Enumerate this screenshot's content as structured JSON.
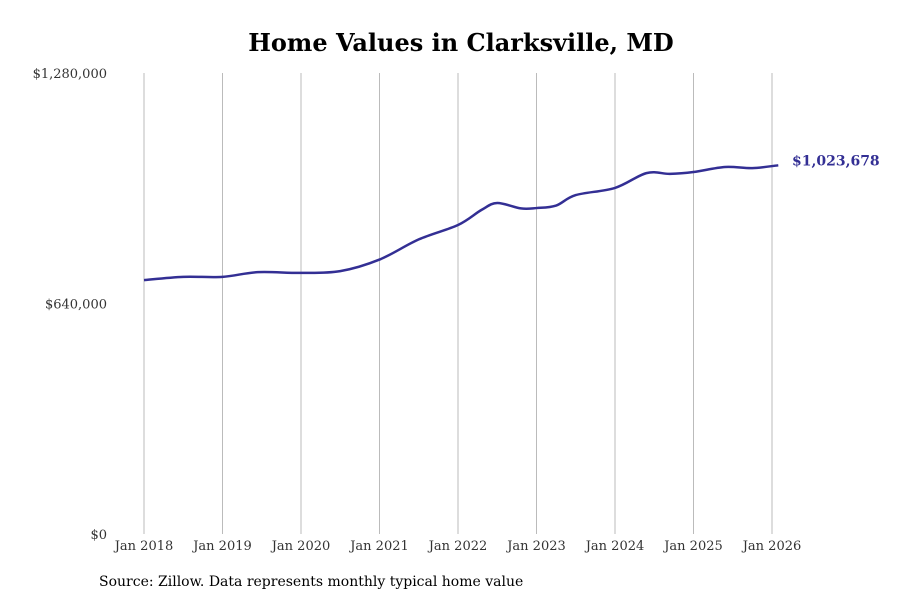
{
  "chart_data": {
    "type": "line",
    "title": "Home Values in Clarksville, MD",
    "xlabel": "",
    "ylabel": "",
    "ylim": [
      0,
      1280000
    ],
    "xlim": [
      2018.0,
      2026.1
    ],
    "y_ticks": [
      {
        "value": 0,
        "label": "$0"
      },
      {
        "value": 640000,
        "label": "$640,000"
      },
      {
        "value": 1280000,
        "label": "$1,280,000"
      }
    ],
    "x_ticks": [
      {
        "value": 2018,
        "label": "Jan 2018"
      },
      {
        "value": 2019,
        "label": "Jan 2019"
      },
      {
        "value": 2020,
        "label": "Jan 2020"
      },
      {
        "value": 2021,
        "label": "Jan 2021"
      },
      {
        "value": 2022,
        "label": "Jan 2022"
      },
      {
        "value": 2023,
        "label": "Jan 2023"
      },
      {
        "value": 2024,
        "label": "Jan 2024"
      },
      {
        "value": 2025,
        "label": "Jan 2025"
      },
      {
        "value": 2026,
        "label": "Jan 2026"
      }
    ],
    "grid": "vertical",
    "series": [
      {
        "name": "Typical home value",
        "color": "#332f94",
        "x": [
          2018.0,
          2018.5,
          2019.0,
          2019.45,
          2020.0,
          2020.5,
          2021.0,
          2021.5,
          2022.0,
          2022.3,
          2022.5,
          2022.8,
          2023.0,
          2023.25,
          2023.5,
          2024.0,
          2024.4,
          2024.7,
          2025.0,
          2025.4,
          2025.75,
          2026.08
        ],
        "values": [
          705000,
          714000,
          714000,
          727000,
          725000,
          730000,
          762000,
          818000,
          858000,
          900000,
          919000,
          904000,
          905000,
          912000,
          941000,
          961000,
          1002000,
          1000000,
          1005000,
          1019000,
          1016000,
          1023678
        ]
      }
    ],
    "end_label": "$1,023,678"
  },
  "source": "Source: Zillow. Data represents monthly typical home value"
}
